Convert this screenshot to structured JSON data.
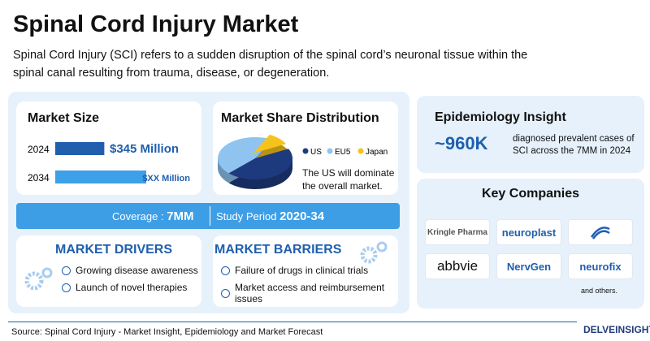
{
  "header": {
    "title": "Spinal Cord Injury Market",
    "description": "Spinal Cord Injury (SCI) refers to a sudden disruption of the spinal cord’s neuronal tissue within the spinal canal resulting from trauma, disease, or degeneration."
  },
  "market_size": {
    "heading": "Market Size",
    "color": "#1f5fae",
    "rows": [
      {
        "year": "2024",
        "value": 345,
        "label": "$345 Million",
        "color": "#1f5fae"
      },
      {
        "year": "2034",
        "value": 640,
        "label": "$XX Million",
        "color": "#3da0e8"
      }
    ]
  },
  "market_share": {
    "heading": "Market Share Distribution",
    "segments": [
      {
        "name": "US",
        "value": 45,
        "color": "#1e3a7e"
      },
      {
        "name": "EU5",
        "value": 45,
        "color": "#8fc3f0"
      },
      {
        "name": "Japan",
        "value": 10,
        "color": "#f6c21c"
      }
    ],
    "note": "The US will dominate the overall market."
  },
  "coverage": {
    "label": "Coverage :",
    "value": "7MM"
  },
  "study_period": {
    "label": "Study Period",
    "value": "2020-34"
  },
  "drivers": {
    "heading": "MARKET DRIVERS",
    "items": [
      "Growing disease awareness",
      "Launch of novel therapies"
    ]
  },
  "barriers": {
    "heading": "MARKET BARRIERS",
    "items": [
      "Failure of drugs in clinical trials",
      "Market access and reimbursement issues"
    ]
  },
  "epidemiology": {
    "heading": "Epidemiology Insight",
    "figure": "~960K",
    "text": "diagnosed prevalent cases of SCI across the 7MM in 2024"
  },
  "companies": {
    "heading": "Key Companies",
    "names": [
      "Kringle Pharma",
      "neuroplast",
      "abbvie",
      "NervGen",
      "neurofix"
    ],
    "more": "and others."
  },
  "footer": {
    "source": "Source: Spinal Cord Injury - Market Insight, Epidemiology and Market Forecast",
    "brand": "DELVEINSIGHT"
  }
}
